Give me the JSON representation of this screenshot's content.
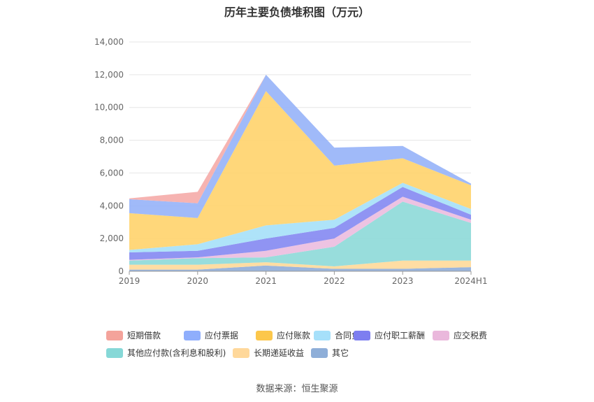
{
  "chart_data": {
    "type": "area",
    "title": "历年主要负债堆积图（万元）",
    "categories": [
      "2019",
      "2020",
      "2021",
      "2022",
      "2023",
      "2024H1"
    ],
    "ylim": [
      0,
      14000
    ],
    "yticks": [
      "0",
      "2,000",
      "4,000",
      "6,000",
      "8,000",
      "10,000",
      "12,000",
      "14,000"
    ],
    "stacked": true,
    "grid": true,
    "legend_position": "bottom",
    "series": [
      {
        "name": "其它",
        "color": "#8fadd9",
        "values": [
          100,
          100,
          350,
          150,
          150,
          250
        ]
      },
      {
        "name": "长期递延收益",
        "color": "#ffd999",
        "values": [
          300,
          300,
          200,
          150,
          500,
          400
        ]
      },
      {
        "name": "其他应付款(含利息和股利)",
        "color": "#8dd9d8",
        "values": [
          250,
          400,
          300,
          1200,
          3600,
          2300
        ]
      },
      {
        "name": "应交税费",
        "color": "#ebbcdf",
        "values": [
          50,
          50,
          400,
          500,
          300,
          200
        ]
      },
      {
        "name": "应付职工薪酬",
        "color": "#8488f2",
        "values": [
          450,
          400,
          750,
          650,
          600,
          300
        ]
      },
      {
        "name": "合同负债",
        "color": "#a5e0f8",
        "values": [
          150,
          400,
          800,
          500,
          250,
          350
        ]
      },
      {
        "name": "应付账款",
        "color": "#ffd36b",
        "values": [
          2250,
          1600,
          8200,
          3300,
          1500,
          1450
        ]
      },
      {
        "name": "应付票据",
        "color": "#96b2f8",
        "values": [
          850,
          900,
          1000,
          1100,
          750,
          100
        ]
      },
      {
        "name": "短期借款",
        "color": "#f5aba8",
        "values": [
          50,
          700,
          0,
          0,
          0,
          0
        ]
      }
    ],
    "legend_order": [
      "短期借款",
      "应付票据",
      "应付账款",
      "合同负债",
      "应付职工薪酬",
      "应交税费",
      "其他应付款(含利息和股利)",
      "长期递延收益",
      "其它"
    ],
    "legend_colors": {
      "短期借款": "#f4a39b",
      "应付票据": "#8faefc",
      "应付账款": "#fcc74b",
      "合同负债": "#a6e0fa",
      "应付职工薪酬": "#7d7ef0",
      "应交税费": "#eab8dc",
      "其他应付款(含利息和股利)": "#86d8d7",
      "长期递延收益": "#ffd89a",
      "其它": "#8eaed8"
    }
  },
  "source_text": "数据来源：恒生聚源"
}
